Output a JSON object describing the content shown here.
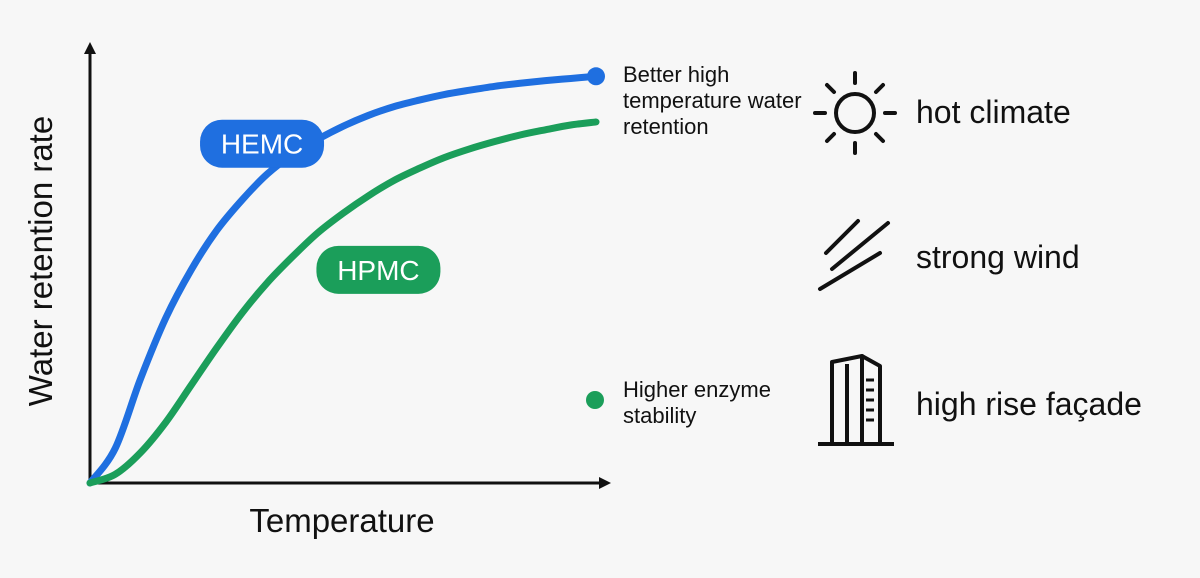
{
  "chart_data": {
    "type": "line",
    "title": "",
    "xlabel": "Temperature",
    "ylabel": "Water retention rate",
    "xlim": [
      0,
      100
    ],
    "ylim": [
      0,
      100
    ],
    "grid": false,
    "series": [
      {
        "name": "HEMC",
        "color": "#1f6fe0",
        "x": [
          0,
          5,
          10,
          15,
          20,
          25,
          30,
          35,
          40,
          45,
          50,
          55,
          60,
          65,
          70,
          75,
          80,
          85,
          90,
          95,
          100
        ],
        "y": [
          0,
          8,
          24,
          38,
          49,
          58,
          65,
          71,
          75.5,
          79,
          82,
          84.5,
          86.5,
          88,
          89.3,
          90.3,
          91.2,
          91.9,
          92.5,
          93,
          93.5
        ]
      },
      {
        "name": "HPMC",
        "color": "#1b9e5a",
        "x": [
          0,
          5,
          10,
          15,
          20,
          25,
          30,
          35,
          40,
          45,
          50,
          55,
          60,
          65,
          70,
          75,
          80,
          85,
          90,
          95,
          100
        ],
        "y": [
          0,
          2,
          7,
          14,
          22.5,
          31,
          39,
          46,
          52,
          57.5,
          62,
          66,
          69.5,
          72.3,
          74.8,
          76.8,
          78.5,
          80,
          81.2,
          82.3,
          83
        ]
      }
    ],
    "annotations": [
      {
        "series": "HEMC",
        "text": "Better high temperature water retention"
      },
      {
        "series": "HPMC",
        "text": "Higher enzyme stability"
      }
    ]
  },
  "legend_items": [
    {
      "icon": "sun-icon",
      "label": "hot climate"
    },
    {
      "icon": "wind-icon",
      "label": "strong wind"
    },
    {
      "icon": "building-icon",
      "label": "high rise façade"
    }
  ]
}
